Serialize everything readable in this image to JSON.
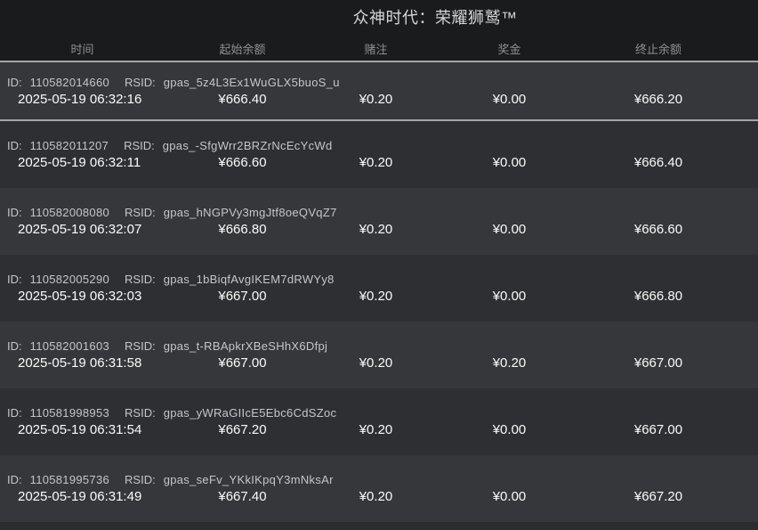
{
  "window": {
    "title": "众神时代：荣耀狮鹫™"
  },
  "table": {
    "columns": [
      "时间",
      "起始余额",
      "赌注",
      "奖金",
      "终止余额"
    ],
    "row_labels": {
      "id": "ID:",
      "rsid": "RSID:"
    },
    "rows": [
      {
        "id": "110582014660",
        "rsid": "gpas_5z4L3Ex1WuGLX5buoS_u",
        "time": "2025-05-19 06:32:16",
        "start_balance": "¥666.40",
        "bet": "¥0.20",
        "prize": "¥0.00",
        "end_balance": "¥666.20"
      },
      {
        "id": "110582011207",
        "rsid": "gpas_-SfgWrr2BRZrNcEcYcWd",
        "time": "2025-05-19 06:32:11",
        "start_balance": "¥666.60",
        "bet": "¥0.20",
        "prize": "¥0.00",
        "end_balance": "¥666.40"
      },
      {
        "id": "110582008080",
        "rsid": "gpas_hNGPVy3mgJtf8oeQVqZ7",
        "time": "2025-05-19 06:32:07",
        "start_balance": "¥666.80",
        "bet": "¥0.20",
        "prize": "¥0.00",
        "end_balance": "¥666.60"
      },
      {
        "id": "110582005290",
        "rsid": "gpas_1bBiqfAvgIKEM7dRWYy8",
        "time": "2025-05-19 06:32:03",
        "start_balance": "¥667.00",
        "bet": "¥0.20",
        "prize": "¥0.00",
        "end_balance": "¥666.80"
      },
      {
        "id": "110582001603",
        "rsid": "gpas_t-RBApkrXBeSHhX6Dfpj",
        "time": "2025-05-19 06:31:58",
        "start_balance": "¥667.00",
        "bet": "¥0.20",
        "prize": "¥0.20",
        "end_balance": "¥667.00"
      },
      {
        "id": "110581998953",
        "rsid": "gpas_yWRaGIIcE5Ebc6CdSZoc",
        "time": "2025-05-19 06:31:54",
        "start_balance": "¥667.20",
        "bet": "¥0.20",
        "prize": "¥0.00",
        "end_balance": "¥667.00"
      },
      {
        "id": "110581995736",
        "rsid": "gpas_seFv_YKkIKpqY3mNksAr",
        "time": "2025-05-19 06:31:49",
        "start_balance": "¥667.40",
        "bet": "¥0.20",
        "prize": "¥0.00",
        "end_balance": "¥667.20"
      }
    ]
  },
  "colors": {
    "page_bg": "#2a2c2e",
    "header_bg": "#1a1b1d",
    "divider": "#a3a5a7",
    "row_odd": "#35373a",
    "row_even": "#2d2f32",
    "title_color": "#d5d6d7",
    "column_label_color": "#8e9092",
    "id_text_color": "#c4c6c8",
    "value_color": "#fafafa"
  }
}
